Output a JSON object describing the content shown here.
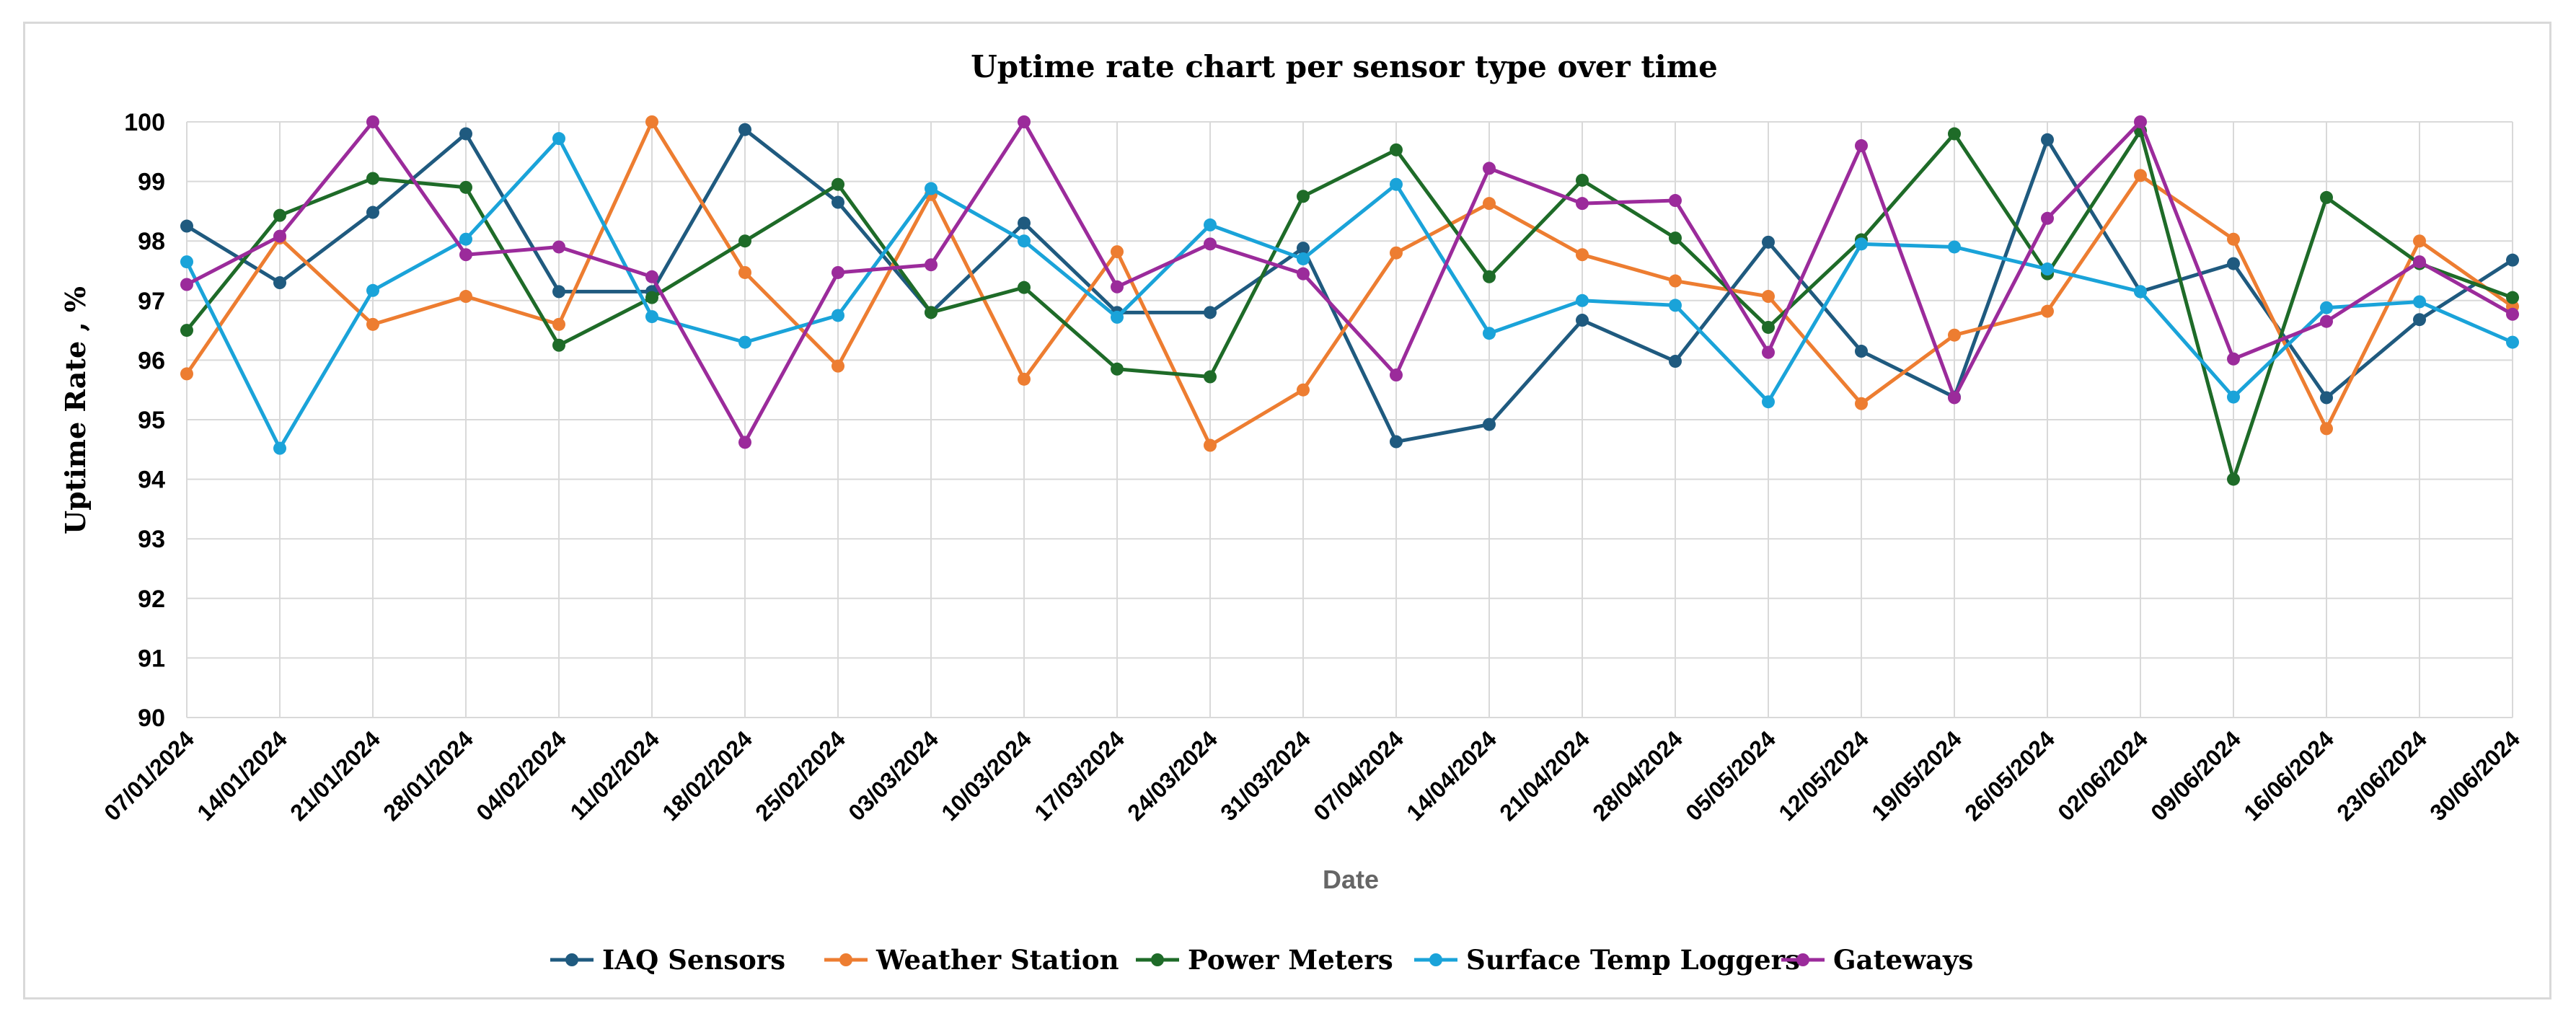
{
  "chart_data": {
    "type": "line",
    "title": "Uptime rate chart per sensor type over time",
    "xlabel": "Date",
    "ylabel": "Uptime Rate , %",
    "ylim": [
      90,
      100
    ],
    "yticks": [
      "90",
      "91",
      "92",
      "93",
      "94",
      "95",
      "96",
      "97",
      "98",
      "99",
      "100"
    ],
    "grid": true,
    "legend_position": "bottom",
    "categories": [
      "07/01/2024",
      "14/01/2024",
      "21/01/2024",
      "28/01/2024",
      "04/02/2024",
      "11/02/2024",
      "18/02/2024",
      "25/02/2024",
      "03/03/2024",
      "10/03/2024",
      "17/03/2024",
      "24/03/2024",
      "31/03/2024",
      "07/04/2024",
      "14/04/2024",
      "21/04/2024",
      "28/04/2024",
      "05/05/2024",
      "12/05/2024",
      "19/05/2024",
      "26/05/2024",
      "02/06/2024",
      "09/06/2024",
      "16/06/2024",
      "23/06/2024",
      "30/06/2024"
    ],
    "series": [
      {
        "name": "IAQ Sensors",
        "color": "#1f5a7f",
        "values": [
          98.25,
          97.3,
          98.48,
          99.8,
          97.15,
          97.15,
          99.87,
          98.65,
          96.8,
          98.3,
          96.8,
          96.8,
          97.88,
          94.63,
          94.92,
          96.67,
          95.98,
          97.98,
          96.15,
          95.38,
          99.7,
          97.15,
          97.62,
          95.37,
          96.68,
          97.68
        ]
      },
      {
        "name": "Weather Station",
        "color": "#ed7d31",
        "values": [
          95.77,
          98.05,
          96.6,
          97.07,
          96.6,
          100.0,
          97.47,
          95.9,
          98.78,
          95.68,
          97.82,
          94.57,
          95.5,
          97.8,
          98.63,
          97.77,
          97.33,
          97.07,
          95.27,
          96.42,
          96.82,
          99.1,
          98.03,
          94.85,
          98.0,
          96.9
        ]
      },
      {
        "name": "Power Meters",
        "color": "#1e6b28",
        "values": [
          96.5,
          98.43,
          99.05,
          98.9,
          96.25,
          97.05,
          98.0,
          98.95,
          96.8,
          97.22,
          95.85,
          95.72,
          98.75,
          99.53,
          97.4,
          99.02,
          98.05,
          96.55,
          98.02,
          99.8,
          97.45,
          99.85,
          94.0,
          98.73,
          97.62,
          97.05
        ]
      },
      {
        "name": "Surface Temp Loggers",
        "color": "#1aa3d9",
        "values": [
          97.65,
          94.52,
          97.17,
          98.03,
          99.72,
          96.73,
          96.3,
          96.75,
          98.88,
          98.0,
          96.72,
          98.27,
          97.7,
          98.95,
          96.45,
          97.0,
          96.92,
          95.3,
          97.95,
          97.9,
          97.53,
          97.15,
          95.38,
          96.88,
          96.98,
          96.3
        ]
      },
      {
        "name": "Gateways",
        "color": "#9b2b9b",
        "values": [
          97.27,
          98.08,
          100.0,
          97.77,
          97.9,
          97.4,
          94.62,
          97.47,
          97.6,
          100.0,
          97.23,
          97.95,
          97.45,
          95.75,
          99.22,
          98.63,
          98.68,
          96.13,
          99.6,
          95.37,
          98.38,
          100.0,
          96.02,
          96.65,
          97.65,
          96.77
        ]
      }
    ]
  }
}
